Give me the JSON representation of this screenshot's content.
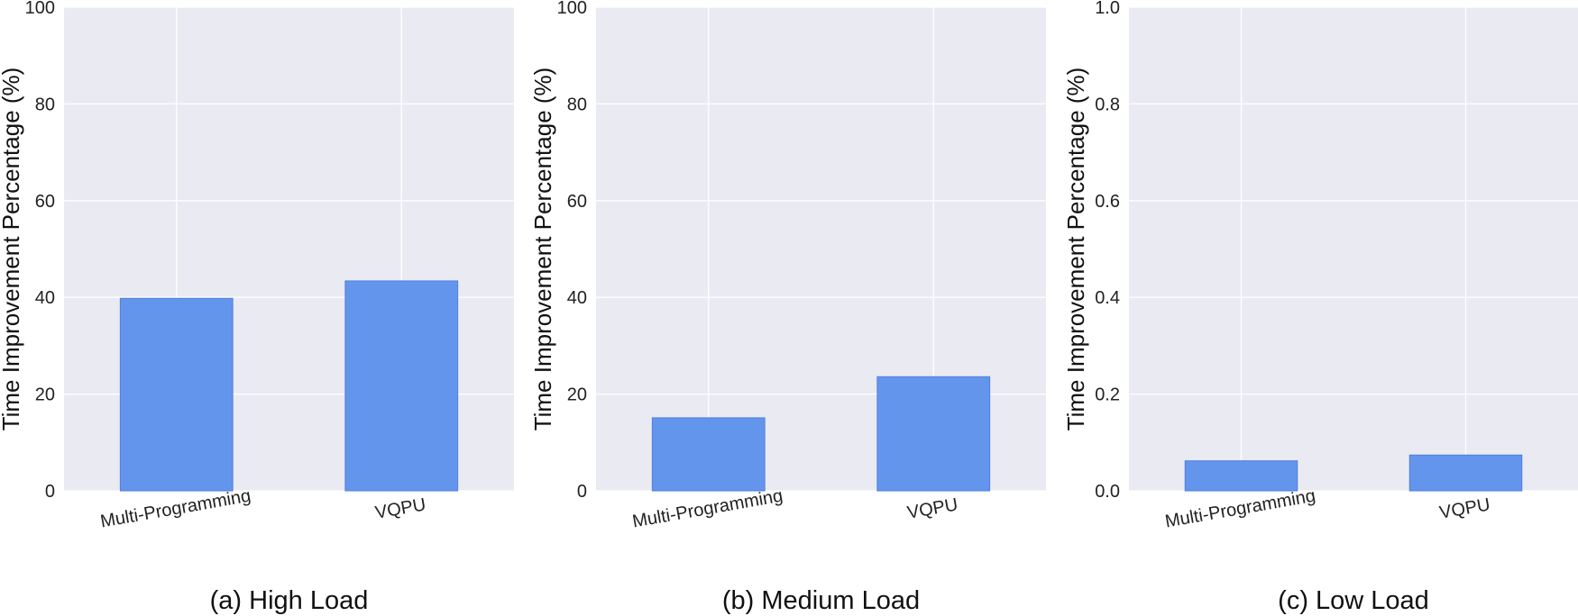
{
  "chart_data": [
    {
      "type": "bar",
      "caption": "(a) High Load",
      "ylabel": "Time Improvement Percentage (%)",
      "categories": [
        "Multi-Programming",
        "VQPU"
      ],
      "values": [
        39.8,
        43.4
      ],
      "ylim": [
        0,
        100
      ],
      "yticks": [
        "0",
        "20",
        "40",
        "60",
        "80",
        "100"
      ],
      "ytick_values": [
        0,
        20,
        40,
        60,
        80,
        100
      ],
      "grid": true
    },
    {
      "type": "bar",
      "caption": "(b) Medium Load",
      "ylabel": "Time Improvement Percentage (%)",
      "categories": [
        "Multi-Programming",
        "VQPU"
      ],
      "values": [
        15.1,
        23.6
      ],
      "ylim": [
        0,
        100
      ],
      "yticks": [
        "0",
        "20",
        "40",
        "60",
        "80",
        "100"
      ],
      "ytick_values": [
        0,
        20,
        40,
        60,
        80,
        100
      ],
      "grid": true
    },
    {
      "type": "bar",
      "caption": "(c) Low Load",
      "ylabel": "Time Improvement Percentage (%)",
      "categories": [
        "Multi-Programming",
        "VQPU"
      ],
      "values": [
        0.062,
        0.074
      ],
      "ylim": [
        0,
        1.0
      ],
      "yticks": [
        "0.0",
        "0.2",
        "0.4",
        "0.6",
        "0.8",
        "1.0"
      ],
      "ytick_values": [
        0,
        0.2,
        0.4,
        0.6,
        0.8,
        1.0
      ],
      "grid": true
    }
  ],
  "colors": {
    "bar": "#6495ED",
    "bar_edge": "#4f7fdc",
    "plot_bg": "#EAEAF2",
    "grid": "#ffffff"
  }
}
